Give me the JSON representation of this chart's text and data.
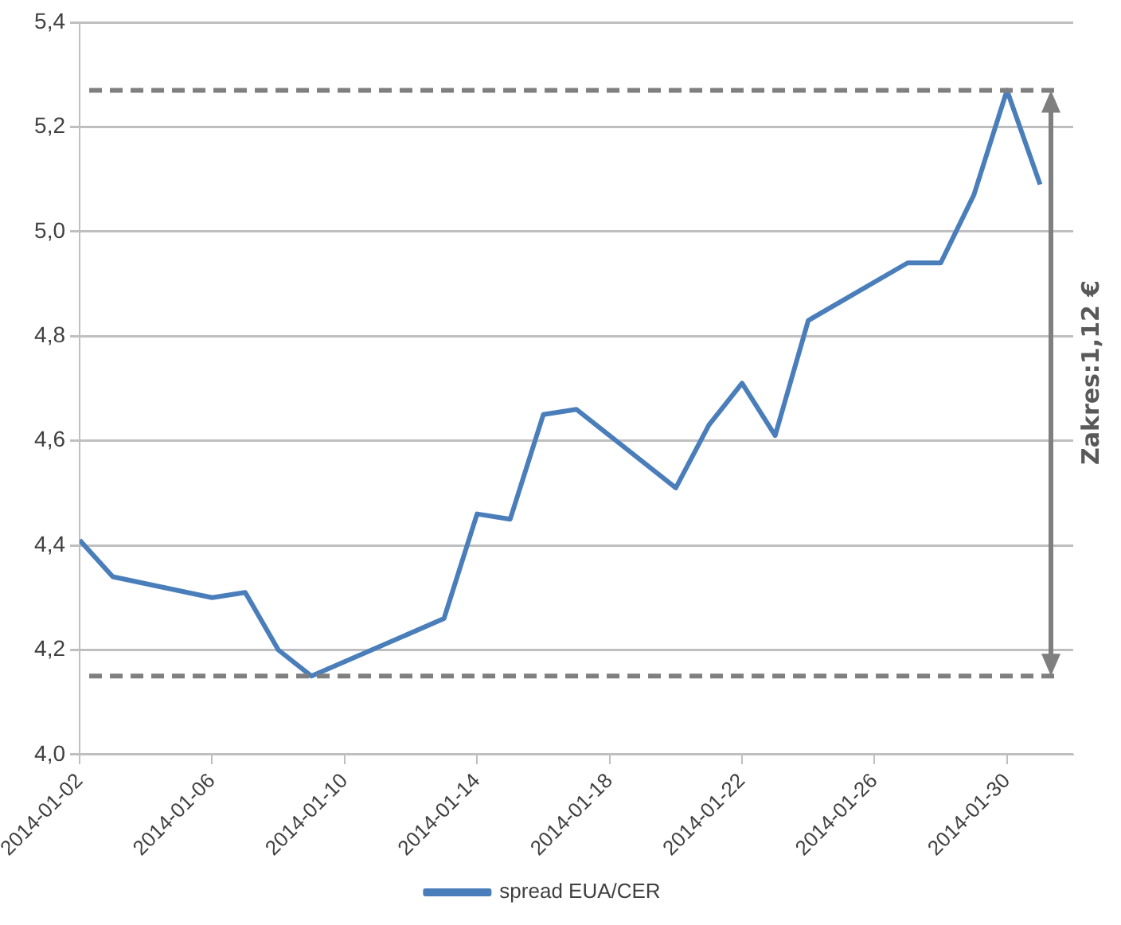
{
  "chart_data": {
    "type": "line",
    "x": [
      "2014-01-02",
      "2014-01-03",
      "2014-01-06",
      "2014-01-07",
      "2014-01-08",
      "2014-01-09",
      "2014-01-13",
      "2014-01-14",
      "2014-01-15",
      "2014-01-16",
      "2014-01-17",
      "2014-01-20",
      "2014-01-21",
      "2014-01-22",
      "2014-01-23",
      "2014-01-24",
      "2014-01-27",
      "2014-01-28",
      "2014-01-29",
      "2014-01-30",
      "2014-01-31"
    ],
    "series": [
      {
        "name": "spread EUA/CER",
        "color": "#4a7ebb",
        "values": [
          4.41,
          4.34,
          4.3,
          4.31,
          4.2,
          4.15,
          4.26,
          4.46,
          4.45,
          4.65,
          4.66,
          4.51,
          4.63,
          4.71,
          4.61,
          4.83,
          4.94,
          4.94,
          5.07,
          5.27,
          5.09
        ]
      }
    ],
    "xlim": [
      "2014-01-02",
      "2014-02-01"
    ],
    "xticks": [
      "2014-01-02",
      "2014-01-06",
      "2014-01-10",
      "2014-01-14",
      "2014-01-18",
      "2014-01-22",
      "2014-01-26",
      "2014-01-30"
    ],
    "ylim": [
      4.0,
      5.4
    ],
    "yticks": [
      {
        "value": 4.0,
        "label": "4,0"
      },
      {
        "value": 4.2,
        "label": "4,2"
      },
      {
        "value": 4.4,
        "label": "4,4"
      },
      {
        "value": 4.6,
        "label": "4,6"
      },
      {
        "value": 4.8,
        "label": "4,8"
      },
      {
        "value": 5.0,
        "label": "5,0"
      },
      {
        "value": 5.2,
        "label": "5,2"
      },
      {
        "value": 5.4,
        "label": "5,4"
      }
    ],
    "ref_lines": [
      {
        "axis": "y",
        "value": 5.27,
        "color": "#7f7f7f",
        "line_style": "dashed"
      },
      {
        "axis": "y",
        "value": 4.15,
        "color": "#7f7f7f",
        "line_style": "dashed"
      }
    ],
    "annotations": [
      "Zakres:1,12 €"
    ],
    "grid": "y",
    "legend": "bottom",
    "marker": "none",
    "line_style": "solid"
  }
}
